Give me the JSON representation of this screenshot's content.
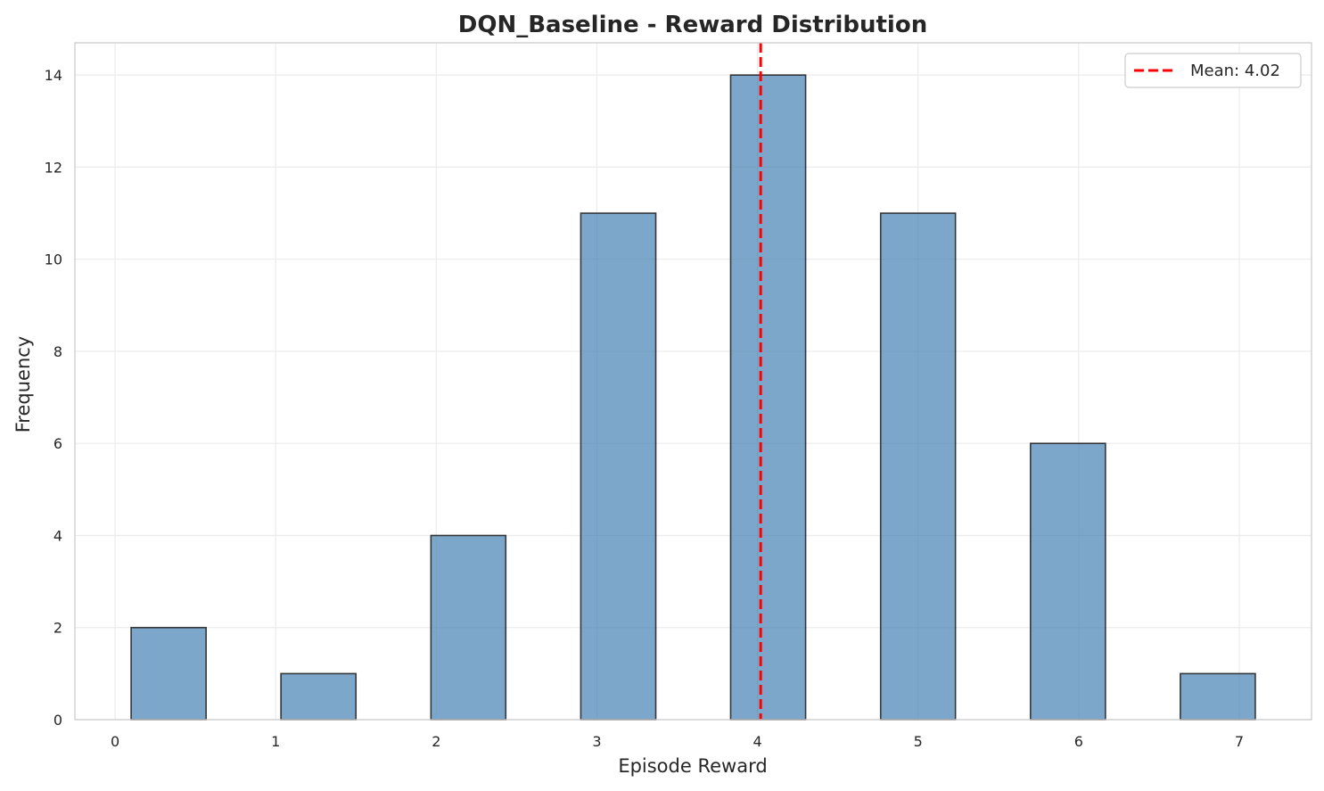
{
  "chart_data": {
    "type": "bar",
    "title": "DQN_Baseline - Reward Distribution",
    "xlabel": "Episode Reward",
    "ylabel": "Frequency",
    "bins": [
      {
        "start": 0.1,
        "end": 0.567,
        "count": 2
      },
      {
        "start": 1.033,
        "end": 1.5,
        "count": 1
      },
      {
        "start": 1.967,
        "end": 2.433,
        "count": 4
      },
      {
        "start": 2.9,
        "end": 3.367,
        "count": 11
      },
      {
        "start": 3.833,
        "end": 4.3,
        "count": 14
      },
      {
        "start": 4.767,
        "end": 5.233,
        "count": 11
      },
      {
        "start": 5.7,
        "end": 6.167,
        "count": 6
      },
      {
        "start": 6.633,
        "end": 7.1,
        "count": 1
      }
    ],
    "mean": 4.02,
    "legend_label": "Mean: 4.02",
    "legend_position": "top-right",
    "xlim": [
      -0.25,
      7.45
    ],
    "ylim": [
      0,
      14.7
    ],
    "xticks": [
      0,
      1,
      2,
      3,
      4,
      5,
      6,
      7
    ],
    "yticks": [
      0,
      2,
      4,
      6,
      8,
      10,
      12,
      14
    ],
    "grid": true,
    "colors": {
      "bar": "#4682b4",
      "mean_line": "#ff0000"
    }
  }
}
